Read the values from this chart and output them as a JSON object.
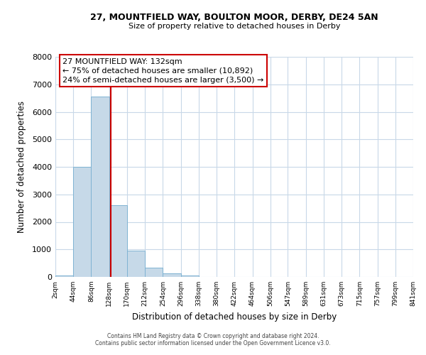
{
  "title": "27, MOUNTFIELD WAY, BOULTON MOOR, DERBY, DE24 5AN",
  "subtitle": "Size of property relative to detached houses in Derby",
  "xlabel": "Distribution of detached houses by size in Derby",
  "ylabel": "Number of detached properties",
  "footnote1": "Contains HM Land Registry data © Crown copyright and database right 2024.",
  "footnote2": "Contains public sector information licensed under the Open Government Licence v3.0.",
  "bar_edges": [
    2,
    44,
    86,
    128,
    170,
    212,
    254,
    296,
    338,
    380,
    422,
    464,
    506,
    547,
    589,
    631,
    673,
    715,
    757,
    799,
    841
  ],
  "bar_heights": [
    60,
    4000,
    6550,
    2600,
    960,
    330,
    130,
    60,
    0,
    0,
    0,
    0,
    0,
    0,
    0,
    0,
    0,
    0,
    0,
    0
  ],
  "bar_color": "#c6d9e8",
  "bar_edgecolor": "#7fb3d3",
  "property_line_x": 132,
  "property_line_color": "#cc0000",
  "annotation_line1": "27 MOUNTFIELD WAY: 132sqm",
  "annotation_line2": "← 75% of detached houses are smaller (10,892)",
  "annotation_line3": "24% of semi-detached houses are larger (3,500) →",
  "ylim": [
    0,
    8000
  ],
  "yticks": [
    0,
    1000,
    2000,
    3000,
    4000,
    5000,
    6000,
    7000,
    8000
  ],
  "xtick_labels": [
    "2sqm",
    "44sqm",
    "86sqm",
    "128sqm",
    "170sqm",
    "212sqm",
    "254sqm",
    "296sqm",
    "338sqm",
    "380sqm",
    "422sqm",
    "464sqm",
    "506sqm",
    "547sqm",
    "589sqm",
    "631sqm",
    "673sqm",
    "715sqm",
    "757sqm",
    "799sqm",
    "841sqm"
  ],
  "background_color": "#ffffff",
  "grid_color": "#c8d8e8"
}
